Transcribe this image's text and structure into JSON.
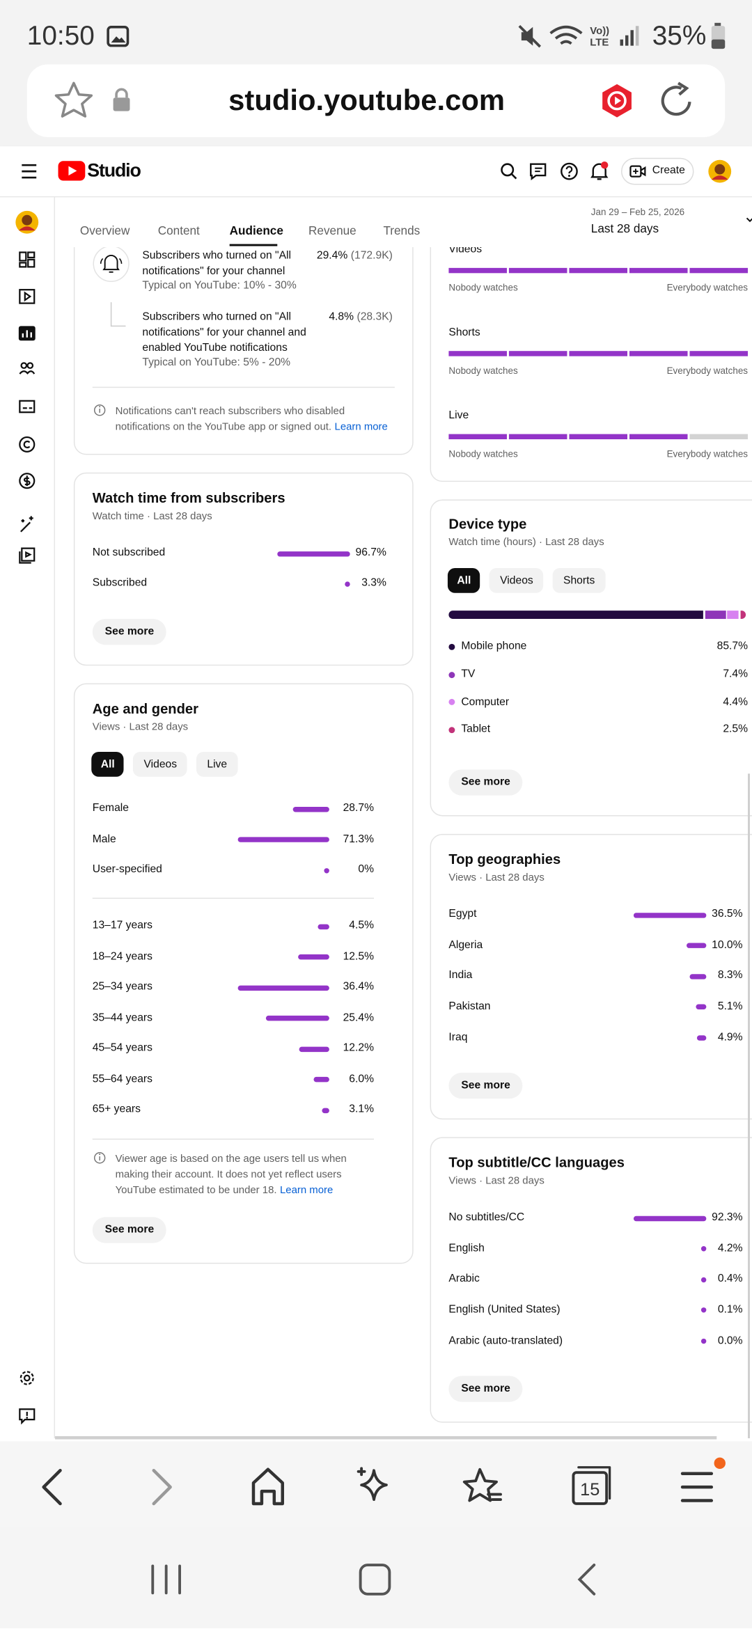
{
  "status_bar": {
    "time": "10:50",
    "battery": "35%"
  },
  "browser": {
    "url": "studio.youtube.com",
    "tab_count": "15"
  },
  "studio_header": {
    "logo": "Studio",
    "create_button": "Create"
  },
  "tabs": [
    "Overview",
    "Content",
    "Audience",
    "Revenue",
    "Trends"
  ],
  "date_range": {
    "dates": "Jan 29 – Feb 25, 2026",
    "label": "Last 28 days"
  },
  "notifications_card": {
    "rows": [
      {
        "text": "Subscribers who turned on \"All notifications\" for your channel",
        "typical": "Typical on YouTube: 10% - 30%",
        "percent": "29.4%",
        "count": "(172.9K)"
      },
      {
        "text": "Subscribers who turned on \"All notifications\" for your channel and enabled YouTube notifications",
        "typical": "Typical on YouTube: 5% - 20%",
        "percent": "4.8%",
        "count": "(28.3K)"
      }
    ],
    "note": "Notifications can't reach subscribers who disabled notifications on the YouTube app or signed out.",
    "link": "Learn more"
  },
  "watch_time_card": {
    "title": "Watch time from subscribers",
    "subtitle": "Watch time · Last 28 days",
    "rows": [
      {
        "label": "Not subscribed",
        "value": 96.7,
        "value_label": "96.7%"
      },
      {
        "label": "Subscribed",
        "value": 3.3,
        "value_label": "3.3%"
      }
    ],
    "button": "See more"
  },
  "age_gender_card": {
    "title": "Age and gender",
    "subtitle": "Views · Last 28 days",
    "chips": [
      "All",
      "Videos",
      "Live"
    ],
    "gender_rows": [
      {
        "label": "Female",
        "value": 28.7,
        "value_label": "28.7%"
      },
      {
        "label": "Male",
        "value": 71.3,
        "value_label": "71.3%"
      },
      {
        "label": "User-specified",
        "value": 0,
        "value_label": "0%"
      }
    ],
    "age_rows": [
      {
        "label": "13–17 years",
        "value": 4.5,
        "value_label": "4.5%"
      },
      {
        "label": "18–24 years",
        "value": 12.5,
        "value_label": "12.5%"
      },
      {
        "label": "25–34 years",
        "value": 36.4,
        "value_label": "36.4%"
      },
      {
        "label": "35–44 years",
        "value": 25.4,
        "value_label": "25.4%"
      },
      {
        "label": "45–54 years",
        "value": 12.2,
        "value_label": "12.2%"
      },
      {
        "label": "55–64 years",
        "value": 6.0,
        "value_label": "6.0%"
      },
      {
        "label": "65+ years",
        "value": 3.1,
        "value_label": "3.1%"
      }
    ],
    "note": "Viewer age is based on the age users tell us when making their account. It does not yet reflect users YouTube estimated to be under 18.",
    "link": "Learn more",
    "button": "See more"
  },
  "retention_card": {
    "items": [
      {
        "label": "Videos",
        "min_label": "Nobody watches",
        "max_label": "Everybody watches"
      },
      {
        "label": "Shorts",
        "min_label": "Nobody watches",
        "max_label": "Everybody watches"
      },
      {
        "label": "Live",
        "min_label": "Nobody watches",
        "max_label": "Everybody watches"
      }
    ]
  },
  "device_card": {
    "title": "Device type",
    "subtitle": "Watch time (hours) · Last 28 days",
    "chips": [
      "All",
      "Videos",
      "Shorts"
    ],
    "rows": [
      {
        "label": "Mobile phone",
        "value": 85.7,
        "value_label": "85.7%",
        "color": "#230b40"
      },
      {
        "label": "TV",
        "value": 7.4,
        "value_label": "7.4%",
        "color": "#8e36b8"
      },
      {
        "label": "Computer",
        "value": 4.4,
        "value_label": "4.4%",
        "color": "#d781f0"
      },
      {
        "label": "Tablet",
        "value": 2.5,
        "value_label": "2.5%",
        "color": "#c2337a"
      }
    ],
    "button": "See more"
  },
  "geo_card": {
    "title": "Top geographies",
    "subtitle": "Views · Last 28 days",
    "rows": [
      {
        "label": "Egypt",
        "value": 36.5,
        "value_label": "36.5%"
      },
      {
        "label": "Algeria",
        "value": 10.0,
        "value_label": "10.0%"
      },
      {
        "label": "India",
        "value": 8.3,
        "value_label": "8.3%"
      },
      {
        "label": "Pakistan",
        "value": 5.1,
        "value_label": "5.1%"
      },
      {
        "label": "Iraq",
        "value": 4.9,
        "value_label": "4.9%"
      }
    ],
    "button": "See more"
  },
  "subtitle_card": {
    "title": "Top subtitle/CC languages",
    "subtitle": "Views · Last 28 days",
    "rows": [
      {
        "label": "No subtitles/CC",
        "value": 92.3,
        "value_label": "92.3%"
      },
      {
        "label": "English",
        "value": 4.2,
        "value_label": "4.2%"
      },
      {
        "label": "Arabic",
        "value": 0.4,
        "value_label": "0.4%"
      },
      {
        "label": "English (United States)",
        "value": 0.1,
        "value_label": "0.1%"
      },
      {
        "label": "Arabic (auto-translated)",
        "value": 0.0,
        "value_label": "0.0%"
      }
    ],
    "button": "See more"
  }
}
